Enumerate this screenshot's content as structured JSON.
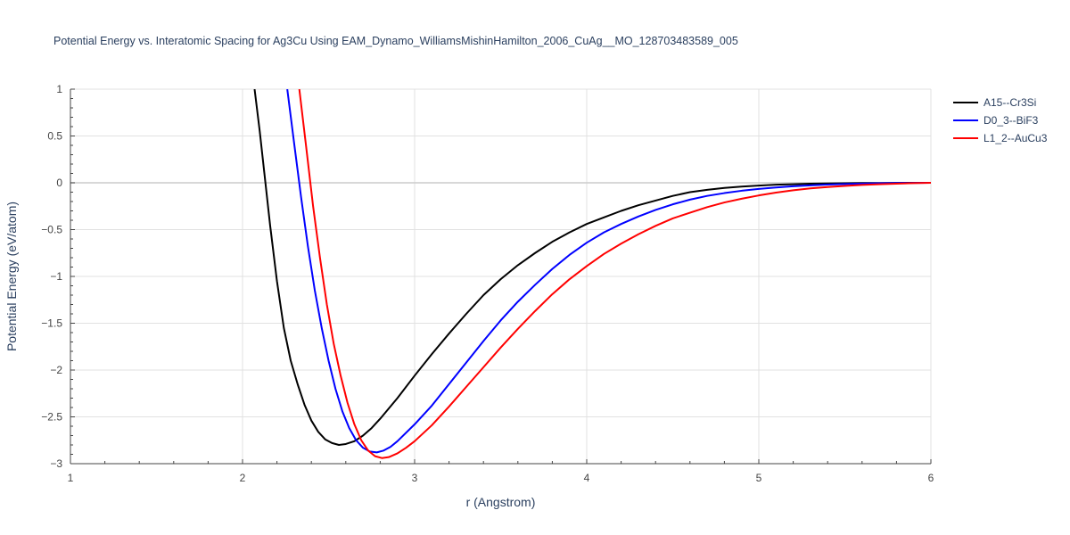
{
  "chart_data": {
    "type": "line",
    "title": "Potential Energy vs. Interatomic Spacing for Ag3Cu Using EAM_Dynamo_WilliamsMishinHamilton_2006_CuAg__MO_128703483589_005",
    "xlabel": "r (Angstrom)",
    "ylabel": "Potential Energy (eV/atom)",
    "xlim": [
      1,
      6
    ],
    "ylim": [
      -3,
      1
    ],
    "x_ticks": [
      1,
      2,
      3,
      4,
      5,
      6
    ],
    "x_tick_labels": [
      "1",
      "2",
      "3",
      "4",
      "5",
      "6"
    ],
    "y_ticks": [
      1,
      0.5,
      0,
      -0.5,
      -1,
      -1.5,
      -2,
      -2.5,
      -3
    ],
    "y_tick_labels": [
      "1",
      "0.5",
      "0",
      "−0.5",
      "−1",
      "−1.5",
      "−2",
      "−2.5",
      "−3"
    ],
    "grid": true,
    "legend_position": "top-right",
    "series": [
      {
        "name": "A15--Cr3Si",
        "color": "#000000",
        "x": [
          2.07,
          2.1,
          2.13,
          2.16,
          2.2,
          2.24,
          2.28,
          2.32,
          2.36,
          2.4,
          2.44,
          2.48,
          2.52,
          2.56,
          2.6,
          2.65,
          2.7,
          2.75,
          2.8,
          2.9,
          3.0,
          3.1,
          3.2,
          3.3,
          3.4,
          3.5,
          3.6,
          3.7,
          3.8,
          3.9,
          4.0,
          4.1,
          4.2,
          4.3,
          4.4,
          4.5,
          4.6,
          4.7,
          4.8,
          4.9,
          5.0,
          5.1,
          5.2,
          5.3,
          5.4,
          5.5,
          5.6,
          5.7,
          5.8,
          5.9,
          6.0
        ],
        "y": [
          1.0,
          0.55,
          0.05,
          -0.45,
          -1.05,
          -1.55,
          -1.9,
          -2.15,
          -2.37,
          -2.54,
          -2.66,
          -2.74,
          -2.78,
          -2.8,
          -2.79,
          -2.76,
          -2.7,
          -2.62,
          -2.52,
          -2.3,
          -2.06,
          -1.83,
          -1.61,
          -1.4,
          -1.2,
          -1.03,
          -0.88,
          -0.75,
          -0.63,
          -0.53,
          -0.44,
          -0.37,
          -0.3,
          -0.24,
          -0.19,
          -0.14,
          -0.1,
          -0.075,
          -0.055,
          -0.04,
          -0.03,
          -0.02,
          -0.015,
          -0.01,
          -0.007,
          -0.005,
          -0.003,
          -0.002,
          -0.001,
          0,
          0
        ]
      },
      {
        "name": "D0_3--BiF3",
        "color": "#0000ff",
        "x": [
          2.26,
          2.3,
          2.34,
          2.38,
          2.42,
          2.46,
          2.5,
          2.54,
          2.58,
          2.62,
          2.66,
          2.7,
          2.74,
          2.78,
          2.82,
          2.86,
          2.9,
          3.0,
          3.1,
          3.2,
          3.3,
          3.4,
          3.5,
          3.6,
          3.7,
          3.8,
          3.9,
          4.0,
          4.1,
          4.2,
          4.3,
          4.4,
          4.5,
          4.6,
          4.7,
          4.8,
          4.9,
          5.0,
          5.1,
          5.2,
          5.3,
          5.4,
          5.5,
          5.6,
          5.7,
          5.8,
          5.9,
          6.0
        ],
        "y": [
          1.0,
          0.42,
          -0.15,
          -0.68,
          -1.15,
          -1.55,
          -1.9,
          -2.2,
          -2.44,
          -2.62,
          -2.75,
          -2.83,
          -2.87,
          -2.88,
          -2.86,
          -2.82,
          -2.76,
          -2.58,
          -2.38,
          -2.15,
          -1.92,
          -1.69,
          -1.47,
          -1.27,
          -1.09,
          -0.92,
          -0.77,
          -0.64,
          -0.53,
          -0.44,
          -0.36,
          -0.29,
          -0.23,
          -0.18,
          -0.14,
          -0.11,
          -0.085,
          -0.065,
          -0.05,
          -0.037,
          -0.027,
          -0.019,
          -0.013,
          -0.008,
          -0.005,
          -0.003,
          -0.001,
          0
        ]
      },
      {
        "name": "L1_2--AuCu3",
        "color": "#ff0000",
        "x": [
          2.33,
          2.37,
          2.41,
          2.45,
          2.49,
          2.53,
          2.57,
          2.61,
          2.65,
          2.69,
          2.73,
          2.77,
          2.81,
          2.85,
          2.9,
          2.95,
          3.0,
          3.1,
          3.2,
          3.3,
          3.4,
          3.5,
          3.6,
          3.7,
          3.8,
          3.9,
          4.0,
          4.1,
          4.2,
          4.3,
          4.4,
          4.5,
          4.6,
          4.7,
          4.8,
          4.9,
          5.0,
          5.1,
          5.2,
          5.3,
          5.4,
          5.5,
          5.6,
          5.7,
          5.8,
          5.9,
          6.0
        ],
        "y": [
          1.0,
          0.38,
          -0.25,
          -0.8,
          -1.3,
          -1.72,
          -2.06,
          -2.35,
          -2.58,
          -2.75,
          -2.86,
          -2.92,
          -2.94,
          -2.93,
          -2.89,
          -2.83,
          -2.76,
          -2.59,
          -2.39,
          -2.18,
          -1.97,
          -1.76,
          -1.56,
          -1.37,
          -1.19,
          -1.03,
          -0.89,
          -0.76,
          -0.65,
          -0.55,
          -0.46,
          -0.38,
          -0.32,
          -0.26,
          -0.21,
          -0.17,
          -0.135,
          -0.105,
          -0.08,
          -0.06,
          -0.045,
          -0.033,
          -0.023,
          -0.015,
          -0.009,
          -0.004,
          0
        ]
      }
    ]
  }
}
